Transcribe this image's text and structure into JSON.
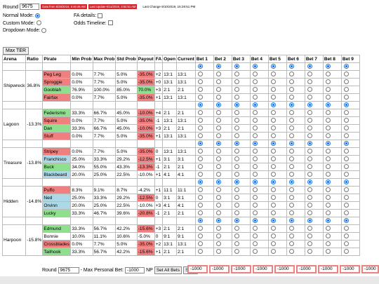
{
  "top": {
    "round_label": "Round",
    "round_value": "9675",
    "badge1": "Data from 8/28/2019, 5:46:46 AM",
    "badge2": "Last Update 9/11/2019, 3:52:51 AM",
    "last_change": "Last Change 9/10/2019, 15:28:51 PM"
  },
  "modes": {
    "normal": "Normal Mode:",
    "custom": "Custom Mode:",
    "dropdown": "Dropdown Mode:",
    "fa_details": "FA details:",
    "odds_timeline": "Odds Timeline:"
  },
  "max_ter": "Max TER",
  "headers": {
    "arena": "Arena",
    "ratio": "Ratio",
    "pirate": "Pirate",
    "min": "Min Prob",
    "max": "Max Prob",
    "std": "Std Prob",
    "payout": "Payout",
    "fa": "FA",
    "open": "Open",
    "current": "Current",
    "bets": [
      "Bet 1",
      "Bet 2",
      "Bet 3",
      "Bet 4",
      "Bet 5",
      "Bet 6",
      "Bet 7",
      "Bet 8",
      "Bet 9"
    ]
  },
  "arenas": [
    {
      "name": "Shipwreck",
      "ratio": "36.8%",
      "pirates": [
        {
          "name": "Peg Leg",
          "cls": "bad",
          "min": "0.0%",
          "max": "7.7%",
          "std": "5.0%",
          "payout": "-35.0%",
          "pcls": "neg",
          "fa": "+2",
          "open": "13:1",
          "current": "13:1"
        },
        {
          "name": "Sproggie",
          "cls": "bad",
          "min": "0.0%",
          "max": "7.7%",
          "std": "5.0%",
          "payout": "-35.0%",
          "pcls": "neg",
          "fa": "+0",
          "open": "13:1",
          "current": "13:1"
        },
        {
          "name": "Gooblah",
          "cls": "good",
          "min": "76.9%",
          "max": "100.0%",
          "std": "85.0%",
          "payout": "70.0%",
          "pcls": "pos",
          "fa": "+3",
          "open": "2:1",
          "current": "2:1"
        },
        {
          "name": "Fairfax",
          "cls": "bad",
          "min": "0.0%",
          "max": "7.7%",
          "std": "5.0%",
          "payout": "-35.0%",
          "pcls": "neg",
          "fa": "+1",
          "open": "13:1",
          "current": "13:1"
        }
      ]
    },
    {
      "name": "Lagoon",
      "ratio": "-13.3%",
      "pirates": [
        {
          "name": "Federismo",
          "cls": "good",
          "min": "33.3%",
          "max": "66.7%",
          "std": "45.0%",
          "payout": "-10.0%",
          "pcls": "neg",
          "fa": "+4",
          "open": "2:1",
          "current": "2:1"
        },
        {
          "name": "Squire",
          "cls": "bad",
          "min": "0.0%",
          "max": "7.7%",
          "std": "5.0%",
          "payout": "-35.0%",
          "pcls": "neg",
          "fa": "-1",
          "open": "13:1",
          "current": "13:1"
        },
        {
          "name": "Dan",
          "cls": "good",
          "min": "33.3%",
          "max": "66.7%",
          "std": "45.0%",
          "payout": "-10.0%",
          "pcls": "neg",
          "fa": "+3",
          "open": "2:1",
          "current": "2:1"
        },
        {
          "name": "Stuff",
          "cls": "bad",
          "min": "0.0%",
          "max": "7.7%",
          "std": "5.0%",
          "payout": "-35.0%",
          "pcls": "neg",
          "fa": "+1",
          "open": "13:1",
          "current": "13:1"
        }
      ]
    },
    {
      "name": "Treasure",
      "ratio": "-13.8%",
      "pirates": [
        {
          "name": "Stripey",
          "cls": "bad",
          "min": "0.0%",
          "max": "7.7%",
          "std": "5.0%",
          "payout": "-35.0%",
          "pcls": "neg",
          "fa": "0",
          "open": "13:1",
          "current": "13:1"
        },
        {
          "name": "Franchisco",
          "cls": "blue",
          "min": "25.0%",
          "max": "33.3%",
          "std": "29.2%",
          "payout": "-12.5%",
          "pcls": "neg",
          "fa": "+1",
          "open": "3:1",
          "current": "3:1"
        },
        {
          "name": "Buck",
          "cls": "good",
          "min": "34.0%",
          "max": "55.0%",
          "std": "43.3%",
          "payout": "-13.3%",
          "pcls": "neg",
          "fa": "-1",
          "open": "2:1",
          "current": "2:1"
        },
        {
          "name": "Blackbeard",
          "cls": "blue",
          "min": "20.0%",
          "max": "25.0%",
          "std": "22.5%",
          "payout": "-10.0%",
          "pcls": "",
          "fa": "+1",
          "open": "4:1",
          "current": "4:1"
        }
      ]
    },
    {
      "name": "Hidden",
      "ratio": "-14.8%",
      "pirates": [
        {
          "name": "Puffo",
          "cls": "bad",
          "min": "8.3%",
          "max": "9.1%",
          "std": "8.7%",
          "payout": "-4.2%",
          "pcls": "",
          "fa": "+1",
          "open": "11:1",
          "current": "11:1"
        },
        {
          "name": "Ned",
          "cls": "blue",
          "min": "25.0%",
          "max": "33.3%",
          "std": "29.2%",
          "payout": "-12.5%",
          "pcls": "neg",
          "fa": "0",
          "open": "3:1",
          "current": "3:1"
        },
        {
          "name": "Orvinn",
          "cls": "blue",
          "min": "20.0%",
          "max": "25.0%",
          "std": "22.5%",
          "payout": "-10.0%",
          "pcls": "",
          "fa": "+3",
          "open": "4:1",
          "current": "4:1"
        },
        {
          "name": "Lucky",
          "cls": "good",
          "min": "33.3%",
          "max": "46.7%",
          "std": "39.6%",
          "payout": "-20.8%",
          "pcls": "neg",
          "fa": "-1",
          "open": "2:1",
          "current": "2:1"
        }
      ]
    },
    {
      "name": "Harpoon",
      "ratio": "-15.8%",
      "pirates": [
        {
          "name": "Edmund",
          "cls": "good",
          "min": "33.3%",
          "max": "56.7%",
          "std": "42.2%",
          "payout": "-15.6%",
          "pcls": "neg",
          "fa": "+3",
          "open": "2:1",
          "current": "2:1"
        },
        {
          "name": "Bonnie",
          "cls": "",
          "min": "10.0%",
          "max": "11.1%",
          "std": "10.6%",
          "payout": "-5.0%",
          "pcls": "",
          "fa": "0",
          "open": "9:1",
          "current": "9:1"
        },
        {
          "name": "Crossblades",
          "cls": "bad",
          "min": "0.0%",
          "max": "7.7%",
          "std": "5.0%",
          "payout": "-35.0%",
          "pcls": "neg",
          "fa": "+2",
          "open": "13:1",
          "current": "13:1"
        },
        {
          "name": "Tailhook",
          "cls": "good",
          "min": "33.3%",
          "max": "56.7%",
          "std": "42.2%",
          "payout": "-15.6%",
          "pcls": "neg",
          "fa": "+1",
          "open": "2:1",
          "current": "2:1"
        }
      ]
    }
  ],
  "bottom": {
    "round_label": "Round",
    "round_value": "9675",
    "max_bet_label": "- Max Personal Bet:",
    "max_bet_value": "-1000",
    "np": "NP",
    "set_all": "Set All Bets",
    "save": "Save",
    "bet_amounts": [
      "-1000",
      "-1000",
      "-1000",
      "-1000",
      "-1000",
      "-1000",
      "-1000",
      "-1000",
      "-1000"
    ]
  }
}
